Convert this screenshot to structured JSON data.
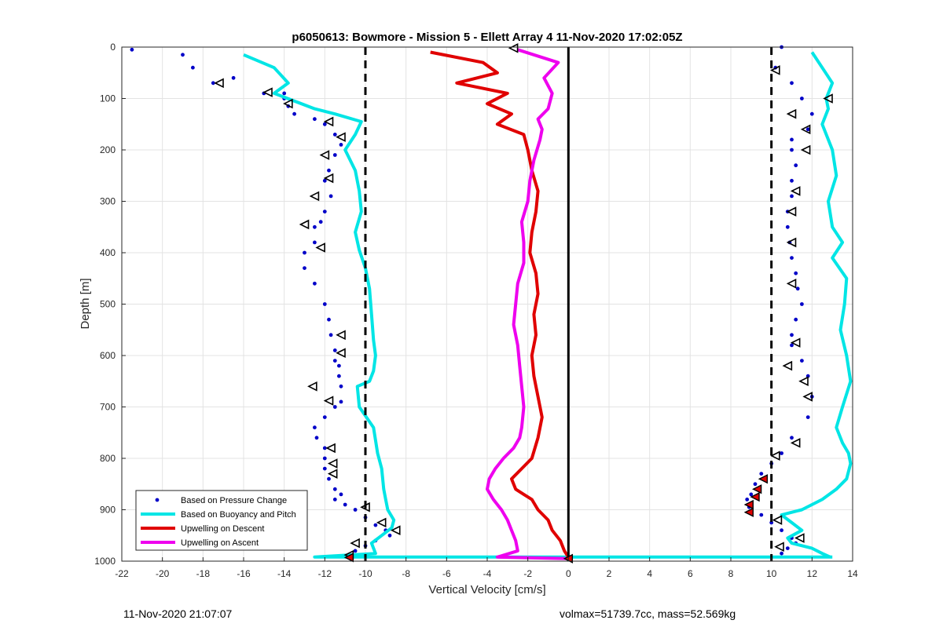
{
  "footer": {
    "timestamp": "11-Nov-2020 21:07:07",
    "info": "volmax=51739.7cc, mass=52.569kg"
  },
  "chart_data": {
    "type": "scatter",
    "title": "p6050613: Bowmore - Mission 5 - Ellett Array 4 11-Nov-2020 17:02:05Z",
    "xlabel": "Vertical Velocity [cm/s]",
    "ylabel": "Depth [m]",
    "xlim": [
      -22,
      14
    ],
    "ylim": [
      0,
      1000
    ],
    "y_reversed": true,
    "grid": true,
    "x_ticks": [
      -22,
      -20,
      -18,
      -16,
      -14,
      -12,
      -10,
      -8,
      -6,
      -4,
      -2,
      0,
      2,
      4,
      6,
      8,
      10,
      12,
      14
    ],
    "y_ticks": [
      0,
      100,
      200,
      300,
      400,
      500,
      600,
      700,
      800,
      900,
      1000
    ],
    "reference_lines": [
      {
        "x": -10,
        "style": "dashed",
        "color": "#000000"
      },
      {
        "x": 10,
        "style": "dashed",
        "color": "#000000"
      },
      {
        "x": 0,
        "style": "solid",
        "color": "#000000"
      }
    ],
    "legend": {
      "position": "bottom-left",
      "entries": [
        {
          "label": "Based on Pressure Change",
          "color": "#0000c8",
          "marker": "point"
        },
        {
          "label": "Based on Buoyancy and Pitch",
          "color": "#00e5e5",
          "marker": "line"
        },
        {
          "label": "Upwelling on Descent",
          "color": "#e00000",
          "marker": "line"
        },
        {
          "label": "Upwelling on Ascent",
          "color": "#ee00ee",
          "marker": "line"
        }
      ]
    },
    "series": [
      {
        "name": "Based on Pressure Change",
        "kind": "points",
        "color": "#0000c8",
        "x": [
          -21.5,
          -19,
          -18.5,
          -17.5,
          -16.5,
          -15,
          -14,
          -13.8,
          -14,
          -13.5,
          -12.5,
          -12,
          -11.5,
          -11.2,
          -11.5,
          -11.8,
          -12,
          -11.7,
          -12,
          -12.2,
          -12.5,
          -12.5,
          -13,
          -13,
          -12.5,
          -12,
          -11.8,
          -11.7,
          -11.5,
          -11.5,
          -11.3,
          -11.3,
          -11.2,
          -11.2,
          -11.5,
          -12,
          -12.5,
          -12.4,
          -12,
          -12,
          -12,
          -11.8,
          -11.5,
          -11.2,
          -11.5,
          -11,
          -10.5,
          -10,
          -9.5,
          -9,
          -8.8,
          -9.5,
          -10,
          -10.5,
          -10.8
        ],
        "y": [
          5,
          15,
          40,
          70,
          60,
          90,
          100,
          115,
          90,
          130,
          140,
          150,
          170,
          190,
          210,
          240,
          260,
          290,
          320,
          340,
          350,
          380,
          400,
          430,
          460,
          500,
          530,
          560,
          590,
          610,
          620,
          640,
          660,
          690,
          700,
          720,
          740,
          760,
          780,
          800,
          820,
          840,
          860,
          870,
          880,
          890,
          900,
          915,
          930,
          940,
          950,
          960,
          970,
          980,
          990
        ],
        "x_ascent": [
          10.5,
          10.2,
          11,
          11.5,
          12,
          11.8,
          11,
          11,
          11.2,
          11,
          11,
          10.8,
          10.8,
          10.9,
          11,
          11.2,
          11.3,
          11.5,
          11.2,
          11,
          11,
          11.5,
          11.8,
          12,
          11.8,
          11,
          10.5,
          10,
          9.5,
          9.2,
          9,
          8.8,
          8.9,
          9.5,
          10,
          10.5,
          11,
          11.2,
          10.8,
          10.5
        ],
        "y_ascent": [
          0,
          40,
          70,
          100,
          130,
          160,
          180,
          200,
          230,
          260,
          290,
          320,
          350,
          380,
          410,
          440,
          470,
          500,
          530,
          560,
          580,
          610,
          640,
          680,
          720,
          760,
          790,
          810,
          830,
          850,
          870,
          880,
          895,
          910,
          925,
          940,
          955,
          965,
          975,
          985
        ]
      },
      {
        "name": "Based on Buoyancy and Pitch",
        "kind": "line",
        "color": "#00e5e5",
        "x": [
          -16,
          -14.5,
          -13.8,
          -14.5,
          -12.5,
          -11.5,
          -10.2,
          -10.5,
          -11,
          -10.5,
          -10.3,
          -10.2,
          -10.5,
          -10.3,
          -10,
          -9.8,
          -9.7,
          -9.6,
          -9.5,
          -9.6,
          -9.8,
          -10.4,
          -10.3,
          -9.6,
          -9.4,
          -9.2,
          -9.1,
          -9,
          -8.9,
          -8.6,
          -8.7,
          -9.2,
          -9.7,
          -9.5,
          -12.5,
          13
        ],
        "y": [
          15,
          40,
          70,
          90,
          120,
          130,
          145,
          170,
          200,
          240,
          280,
          320,
          360,
          395,
          430,
          470,
          520,
          570,
          600,
          630,
          650,
          660,
          700,
          740,
          790,
          820,
          860,
          880,
          900,
          920,
          935,
          950,
          965,
          985,
          992,
          992
        ],
        "x_ascent": [
          12,
          12.5,
          13,
          12.7,
          12.8,
          12.5,
          13,
          13.2,
          12.8,
          13,
          13.5,
          13,
          13.7,
          13.6,
          13.4,
          13.7,
          13.9,
          13.5,
          13.2,
          13.5,
          13.8,
          13.9,
          13.7,
          13.2,
          12.5,
          11.5,
          10.5,
          11,
          11.5,
          10.8,
          11,
          12,
          12.5,
          12.9
        ],
        "y_ascent": [
          10,
          40,
          70,
          100,
          120,
          150,
          200,
          250,
          300,
          350,
          380,
          410,
          450,
          500,
          550,
          600,
          650,
          700,
          740,
          770,
          790,
          810,
          840,
          860,
          880,
          900,
          910,
          925,
          940,
          955,
          965,
          975,
          985,
          992
        ]
      },
      {
        "name": "Upwelling on Descent",
        "kind": "line",
        "color": "#e00000",
        "x": [
          -6.8,
          -4.2,
          -3.5,
          -5.5,
          -3,
          -4,
          -2.8,
          -3.5,
          -2.2,
          -2,
          -1.8,
          -1.5,
          -1.6,
          -1.8,
          -1.9,
          -1.6,
          -1.5,
          -1.7,
          -1.6,
          -1.8,
          -1.7,
          -1.5,
          -1.3,
          -1.5,
          -1.8,
          -2.3,
          -2.8,
          -2.6,
          -2.2,
          -1.8,
          -1.5,
          -1,
          -0.8,
          -0.4,
          -0.2,
          0
        ],
        "y": [
          10,
          30,
          50,
          70,
          90,
          110,
          130,
          150,
          170,
          200,
          240,
          280,
          320,
          360,
          400,
          440,
          480,
          520,
          560,
          600,
          640,
          680,
          720,
          760,
          800,
          820,
          840,
          860,
          870,
          880,
          900,
          920,
          940,
          960,
          980,
          992
        ]
      },
      {
        "name": "Upwelling on Ascent",
        "kind": "line",
        "color": "#ee00ee",
        "x": [
          -2.5,
          -0.5,
          -1.2,
          -0.8,
          -1,
          -1.5,
          -1.3,
          -1.4,
          -1.7,
          -1.9,
          -2,
          -2.3,
          -2.2,
          -2.2,
          -2.5,
          -2.6,
          -2.7,
          -2.5,
          -2.4,
          -2.3,
          -2.2,
          -2.3,
          -2.4,
          -2.7,
          -3.2,
          -3.6,
          -3.9,
          -4,
          -3.7,
          -3.3,
          -3,
          -2.8,
          -2.6,
          -2.5,
          -3.5,
          0
        ],
        "y": [
          5,
          30,
          60,
          90,
          120,
          140,
          160,
          180,
          220,
          260,
          300,
          340,
          380,
          420,
          460,
          500,
          540,
          580,
          620,
          660,
          700,
          740,
          760,
          780,
          800,
          820,
          840,
          860,
          880,
          900,
          920,
          940,
          960,
          980,
          992,
          995
        ]
      }
    ],
    "markers": [
      {
        "type": "triangle-left",
        "x": -17.2,
        "y": 70
      },
      {
        "type": "triangle-left",
        "x": -14.8,
        "y": 88
      },
      {
        "type": "triangle-left",
        "x": -13.8,
        "y": 110
      },
      {
        "type": "triangle-left",
        "x": -11.8,
        "y": 145
      },
      {
        "type": "triangle-left",
        "x": -11.2,
        "y": 175
      },
      {
        "type": "triangle-left",
        "x": -12,
        "y": 210
      },
      {
        "type": "triangle-left",
        "x": -11.8,
        "y": 255
      },
      {
        "type": "triangle-left",
        "x": -12.5,
        "y": 290
      },
      {
        "type": "triangle-left",
        "x": -13,
        "y": 345
      },
      {
        "type": "triangle-left",
        "x": -12.2,
        "y": 390
      },
      {
        "type": "triangle-left",
        "x": -11.2,
        "y": 560
      },
      {
        "type": "triangle-left",
        "x": -11.2,
        "y": 595
      },
      {
        "type": "triangle-left",
        "x": -12.6,
        "y": 660
      },
      {
        "type": "triangle-left",
        "x": -11.8,
        "y": 688
      },
      {
        "type": "triangle-left",
        "x": -11.7,
        "y": 780
      },
      {
        "type": "triangle-left",
        "x": -11.6,
        "y": 810
      },
      {
        "type": "triangle-left",
        "x": -11.6,
        "y": 830
      },
      {
        "type": "triangle-left",
        "x": -10,
        "y": 895
      },
      {
        "type": "triangle-left",
        "x": -9.2,
        "y": 925
      },
      {
        "type": "triangle-left",
        "x": -8.5,
        "y": 940
      },
      {
        "type": "triangle-left",
        "x": -10.5,
        "y": 965
      },
      {
        "type": "triangle-left",
        "x": -10.8,
        "y": 988
      },
      {
        "type": "triangle-left",
        "x": -2.7,
        "y": 2
      },
      {
        "type": "triangle-left",
        "x": 10.2,
        "y": 45
      },
      {
        "type": "triangle-left",
        "x": 12.8,
        "y": 100
      },
      {
        "type": "triangle-left",
        "x": 11,
        "y": 130
      },
      {
        "type": "triangle-left",
        "x": 11.7,
        "y": 160
      },
      {
        "type": "triangle-left",
        "x": 11.7,
        "y": 200
      },
      {
        "type": "triangle-left",
        "x": 11.2,
        "y": 280
      },
      {
        "type": "triangle-left",
        "x": 11,
        "y": 320
      },
      {
        "type": "triangle-left",
        "x": 11,
        "y": 380
      },
      {
        "type": "triangle-left",
        "x": 11,
        "y": 460
      },
      {
        "type": "triangle-left",
        "x": 11.2,
        "y": 575
      },
      {
        "type": "triangle-left",
        "x": 10.8,
        "y": 620
      },
      {
        "type": "triangle-left",
        "x": 11.6,
        "y": 650
      },
      {
        "type": "triangle-left",
        "x": 11.8,
        "y": 680
      },
      {
        "type": "triangle-left",
        "x": 11.2,
        "y": 770
      },
      {
        "type": "triangle-left",
        "x": 10.2,
        "y": 795
      },
      {
        "type": "triangle-left",
        "x": 10.3,
        "y": 920
      },
      {
        "type": "triangle-left",
        "x": 11.4,
        "y": 955
      },
      {
        "type": "triangle-left",
        "x": 10.4,
        "y": 972
      },
      {
        "type": "triangle-filled-red",
        "x": 9.3,
        "y": 860
      },
      {
        "type": "triangle-filled-red",
        "x": 9.2,
        "y": 875
      },
      {
        "type": "triangle-filled-red",
        "x": 8.9,
        "y": 890
      },
      {
        "type": "triangle-filled-red",
        "x": 8.9,
        "y": 905
      },
      {
        "type": "triangle-filled-red",
        "x": 9.6,
        "y": 840
      },
      {
        "type": "triangle-filled-red",
        "x": -10.8,
        "y": 993
      },
      {
        "type": "triangle-filled-red",
        "x": 0,
        "y": 995
      }
    ]
  }
}
